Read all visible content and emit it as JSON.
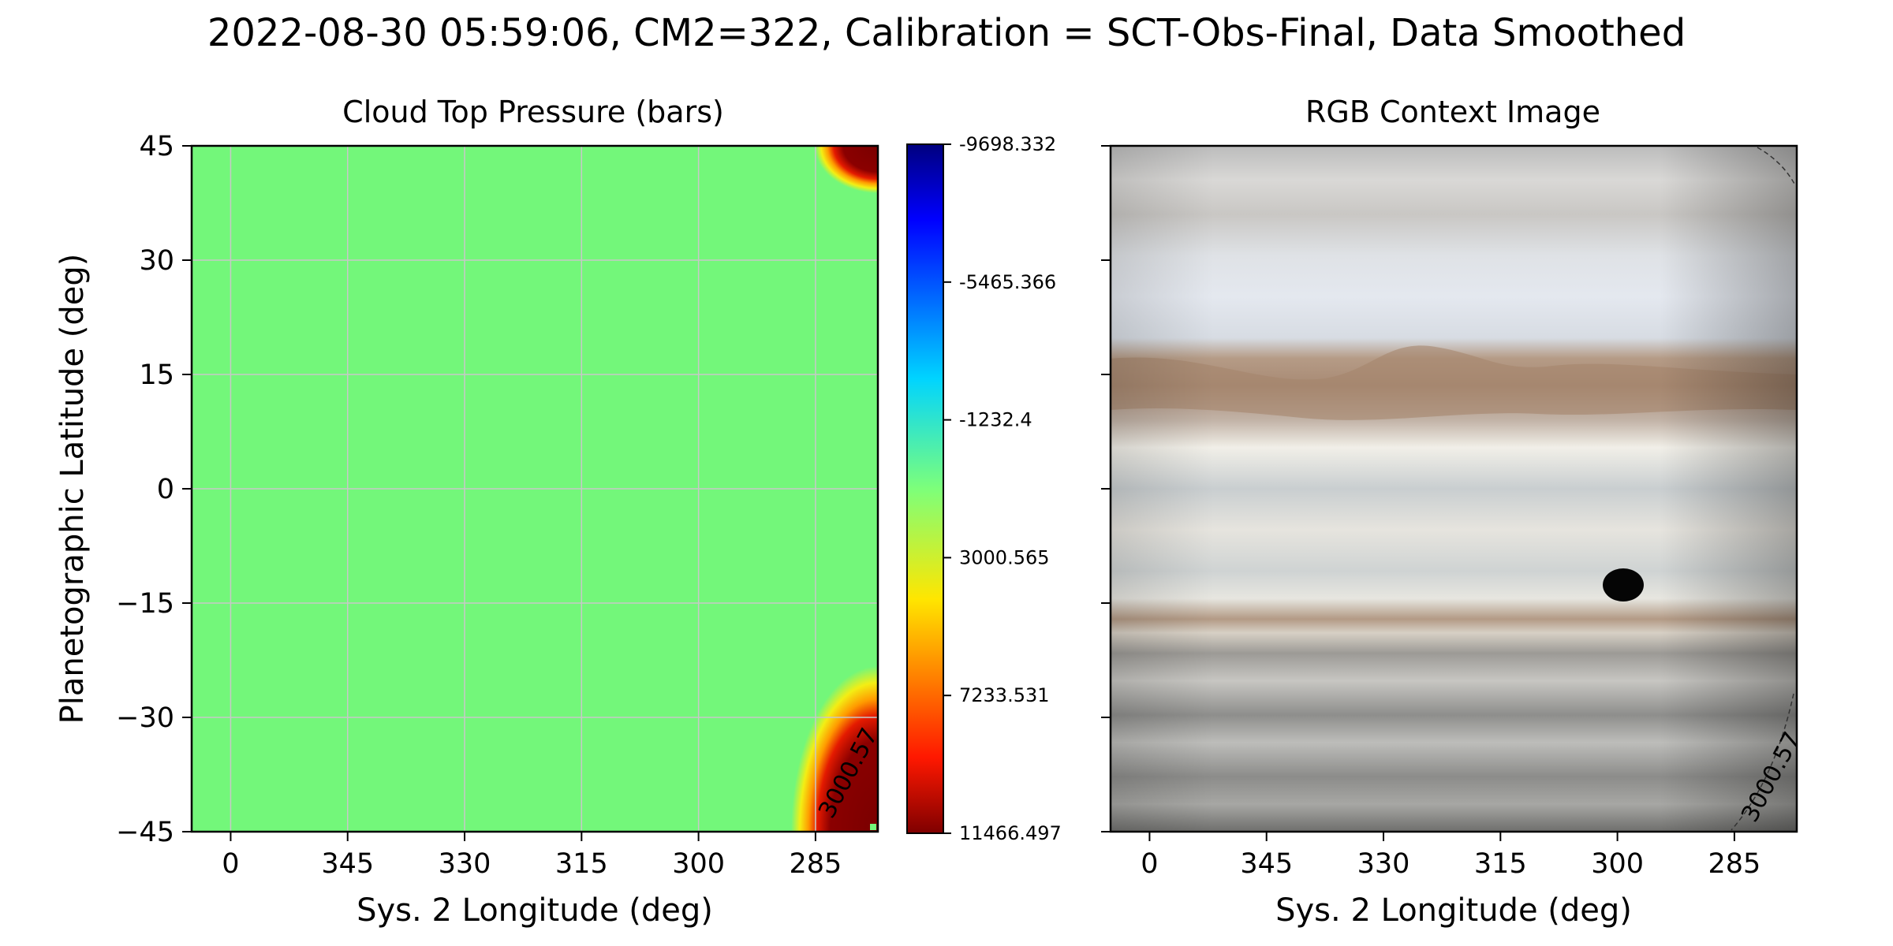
{
  "figure": {
    "suptitle": "2022-08-30 05:59:06, CM2=322, Calibration = SCT-Obs-Final, Data Smoothed"
  },
  "colors": {
    "field": "#73f77a",
    "frame": "#000000",
    "grid": "#c8c8c8",
    "limb_dark": "#800000",
    "limb_red": "#e01000",
    "limb_orange": "#ff9000",
    "limb_yellow": "#f5ee10"
  },
  "chart_data": [
    {
      "type": "heatmap",
      "title": "Cloud Top Pressure (bars)",
      "xlabel": "Sys. 2 Longitude (deg)",
      "ylabel": "Planetographic Latitude (deg)",
      "xlim": [
        5,
        277
      ],
      "ylim": [
        -45,
        45
      ],
      "x_axis_reversed": true,
      "xticks": [
        0,
        345,
        330,
        315,
        300,
        285
      ],
      "xtick_labels": [
        "0",
        "345",
        "330",
        "315",
        "300",
        "285"
      ],
      "yticks": [
        45,
        30,
        15,
        0,
        -15,
        -30,
        -45
      ],
      "ytick_labels": [
        "45",
        "30",
        "15",
        "0",
        "−15",
        "−30",
        "−45"
      ],
      "grid": true,
      "colormap": "jet (reversed)",
      "colorbar": {
        "range": [
          -9698.332,
          11466.497
        ],
        "ticks": [
          -9698.332,
          -5465.366,
          -1232.4,
          3000.565,
          7233.531,
          11466.497
        ],
        "tick_labels": [
          "-9698.332",
          "-5465.366",
          "-1232.4",
          "3000.565",
          "7233.531",
          "11466.497"
        ]
      },
      "dominant_value_approx": 1000,
      "limb_edge_values": "high (dark red) at top-right and bottom-right corners",
      "contour_label": "3000.57"
    },
    {
      "type": "image",
      "title": "RGB Context Image",
      "xlabel": "Sys. 2 Longitude (deg)",
      "xlim": [
        5,
        277
      ],
      "ylim": [
        -45,
        45
      ],
      "x_axis_reversed": true,
      "xticks": [
        0,
        345,
        330,
        315,
        300,
        285
      ],
      "xtick_labels": [
        "0",
        "345",
        "330",
        "315",
        "300",
        "285"
      ],
      "yticks": [
        45,
        30,
        15,
        0,
        -15,
        -30,
        -45
      ],
      "contour_label": "3000.57",
      "features": "Jupiter cloud belts; dark spot near longitude 300, latitude -12"
    }
  ]
}
